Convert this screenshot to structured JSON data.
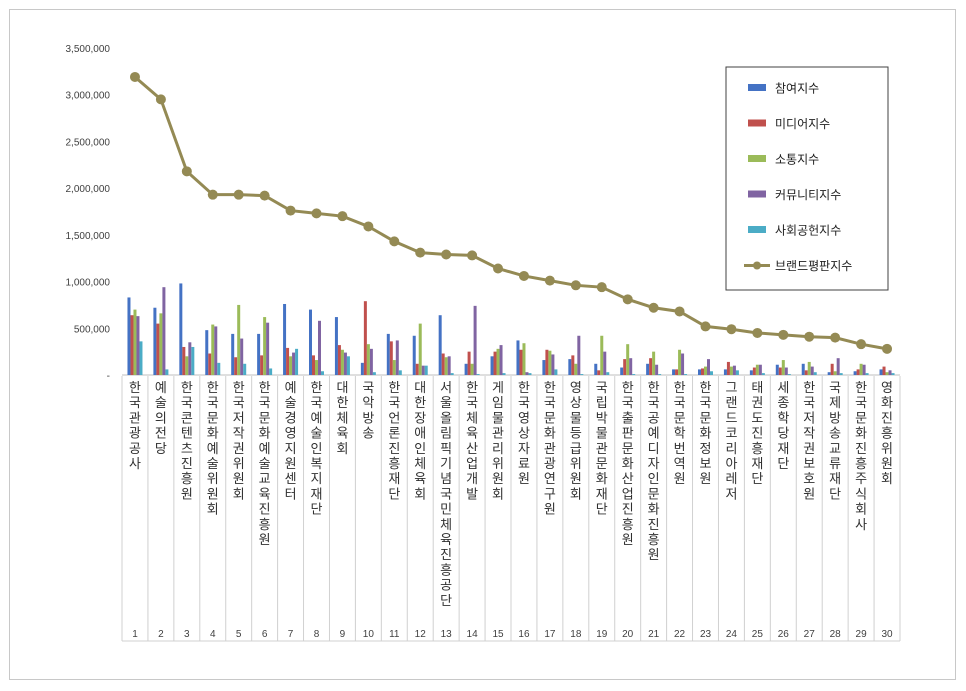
{
  "chart_data": {
    "type": "bar",
    "categories": [
      "한국관광공사",
      "예술의전당",
      "한국콘텐츠진흥원",
      "한국문화예술위원회",
      "한국저작권위원회",
      "한국문화예술교육진흥원",
      "예술경영지원센터",
      "한국예술인복지재단",
      "대한체육회",
      "국악방송",
      "한국언론진흥재단",
      "대한장애인체육회",
      "서울올림픽기념국민체육진흥공단",
      "한국체육산업개발",
      "게임물관리위원회",
      "한국영상자료원",
      "한국문화관광연구원",
      "영상물등급위원회",
      "국립박물관문화재단",
      "한국출판문화산업진흥원",
      "한국공예디자인문화진흥원",
      "한국문학번역원",
      "한국문화정보원",
      "그랜드코리아레저",
      "태권도진흥재단",
      "세종학당재단",
      "한국저작권보호원",
      "국제방송교류재단",
      "한국문화진흥주식회사",
      "영화진흥위원회"
    ],
    "ranks": [
      "1",
      "2",
      "3",
      "4",
      "5",
      "6",
      "7",
      "8",
      "9",
      "10",
      "11",
      "12",
      "13",
      "14",
      "15",
      "16",
      "17",
      "18",
      "19",
      "20",
      "21",
      "22",
      "23",
      "24",
      "25",
      "26",
      "27",
      "28",
      "29",
      "30"
    ],
    "ylim": [
      0,
      3500000
    ],
    "yticks": [
      0,
      500000,
      1000000,
      1500000,
      2000000,
      2500000,
      3000000,
      3500000
    ],
    "ytick_labels": [
      "-",
      "500,000",
      "1,000,000",
      "1,500,000",
      "2,000,000",
      "2,500,000",
      "3,000,000",
      "3,500,000"
    ],
    "legend_position": "top-right",
    "grid": false,
    "series": [
      {
        "name": "참여지수",
        "color": "#4472c4",
        "kind": "bar",
        "values": [
          830000,
          720000,
          980000,
          480000,
          440000,
          440000,
          760000,
          700000,
          620000,
          130000,
          440000,
          420000,
          640000,
          120000,
          200000,
          370000,
          160000,
          170000,
          120000,
          80000,
          120000,
          60000,
          60000,
          60000,
          50000,
          110000,
          120000,
          30000,
          40000,
          60000
        ]
      },
      {
        "name": "미디어지수",
        "color": "#c0504d",
        "kind": "bar",
        "values": [
          640000,
          550000,
          300000,
          230000,
          190000,
          210000,
          290000,
          210000,
          320000,
          790000,
          360000,
          120000,
          230000,
          250000,
          250000,
          270000,
          270000,
          210000,
          50000,
          170000,
          180000,
          60000,
          70000,
          140000,
          80000,
          80000,
          50000,
          120000,
          60000,
          90000
        ]
      },
      {
        "name": "소통지수",
        "color": "#9bbb59",
        "kind": "bar",
        "values": [
          700000,
          660000,
          200000,
          540000,
          750000,
          620000,
          200000,
          160000,
          270000,
          330000,
          160000,
          550000,
          190000,
          120000,
          280000,
          340000,
          260000,
          120000,
          420000,
          330000,
          250000,
          270000,
          90000,
          90000,
          110000,
          160000,
          140000,
          40000,
          120000,
          30000
        ]
      },
      {
        "name": "커뮤니티지수",
        "color": "#8064a2",
        "kind": "bar",
        "values": [
          630000,
          940000,
          350000,
          520000,
          390000,
          560000,
          240000,
          580000,
          240000,
          280000,
          370000,
          100000,
          200000,
          740000,
          320000,
          30000,
          220000,
          420000,
          250000,
          180000,
          110000,
          230000,
          170000,
          100000,
          110000,
          80000,
          90000,
          180000,
          110000,
          50000
        ]
      },
      {
        "name": "사회공헌지수",
        "color": "#4bacc6",
        "kind": "bar",
        "values": [
          360000,
          60000,
          300000,
          130000,
          120000,
          70000,
          280000,
          40000,
          200000,
          30000,
          50000,
          100000,
          20000,
          10000,
          20000,
          20000,
          60000,
          10000,
          30000,
          10000,
          10000,
          10000,
          40000,
          50000,
          20000,
          10000,
          30000,
          20000,
          20000,
          20000
        ]
      },
      {
        "name": "브랜드평판지수",
        "color": "#948a54",
        "kind": "line",
        "values": [
          3190000,
          2950000,
          2180000,
          1930000,
          1930000,
          1920000,
          1760000,
          1730000,
          1700000,
          1590000,
          1430000,
          1310000,
          1290000,
          1280000,
          1140000,
          1060000,
          1010000,
          960000,
          940000,
          810000,
          720000,
          680000,
          520000,
          490000,
          450000,
          430000,
          410000,
          400000,
          330000,
          280000
        ]
      }
    ]
  }
}
